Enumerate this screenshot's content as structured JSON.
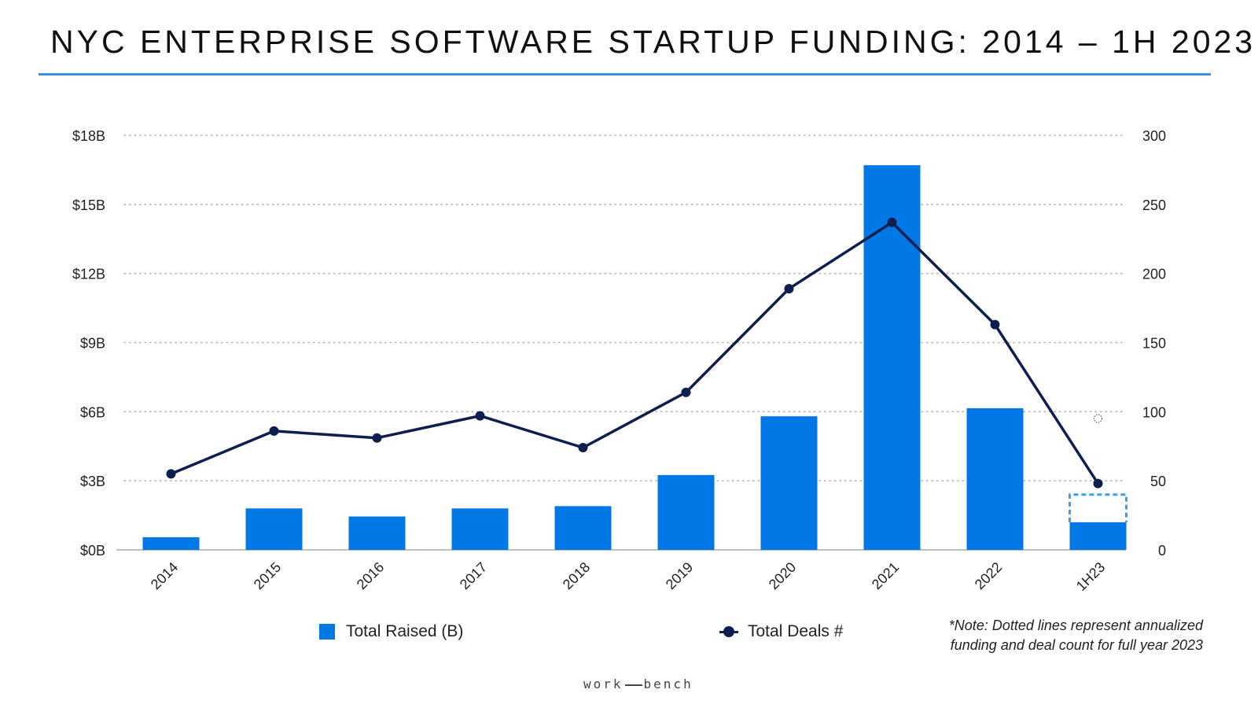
{
  "title": "NYC ENTERPRISE SOFTWARE STARTUP FUNDING: 2014 – 1H 2023",
  "colors": {
    "bar": "#0277e6",
    "line": "#0d1f4f",
    "annualized": "#3aa0e8",
    "title_rule": "#3a8fe6",
    "grid": "#b5b5b5"
  },
  "legend": {
    "bars_label": "Total Raised (B)",
    "line_label": "Total Deals #"
  },
  "note": {
    "line1": "*Note: Dotted lines represent annualized",
    "line2": "funding and deal count for full year 2023"
  },
  "logo": {
    "left": "work",
    "right": "bench"
  },
  "chart_data": {
    "type": "bar",
    "categories": [
      "2014",
      "2015",
      "2016",
      "2017",
      "2018",
      "2019",
      "2020",
      "2021",
      "2022",
      "1H23"
    ],
    "series": [
      {
        "name": "Total Raised (B)",
        "type": "bar",
        "axis": "left",
        "values": [
          0.55,
          1.8,
          1.45,
          1.8,
          1.9,
          3.25,
          5.8,
          16.7,
          6.15,
          1.2
        ]
      },
      {
        "name": "Total Deals #",
        "type": "line",
        "axis": "right",
        "values": [
          55,
          86,
          81,
          97,
          74,
          114,
          189,
          237,
          163,
          48
        ]
      }
    ],
    "annualized": {
      "category": "1H23",
      "total_raised": 2.4,
      "total_deals": 95
    },
    "y_left": {
      "ylim": [
        0,
        18
      ],
      "ticks": [
        0,
        3,
        6,
        9,
        12,
        15,
        18
      ],
      "tick_labels": [
        "$0B",
        "$3B",
        "$6B",
        "$9B",
        "$12B",
        "$15B",
        "$18B"
      ]
    },
    "y_right": {
      "ylim": [
        0,
        300
      ],
      "ticks": [
        0,
        50,
        100,
        150,
        200,
        250,
        300
      ],
      "tick_labels": [
        "0",
        "50",
        "100",
        "150",
        "200",
        "250",
        "300"
      ]
    },
    "grid": true,
    "legend_position": "bottom"
  }
}
